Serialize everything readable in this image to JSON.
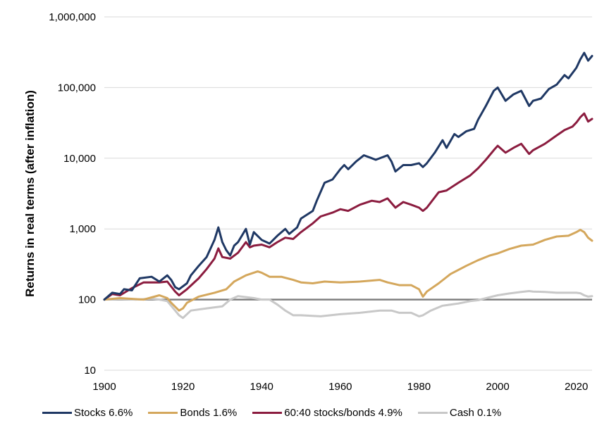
{
  "chart_data": {
    "type": "line",
    "ylabel": "Returns in real terms (after inflation)",
    "xlabel": "",
    "title": "",
    "y_scale": "log",
    "ylim": [
      10,
      1000000
    ],
    "xlim": [
      1900,
      2024
    ],
    "x_ticks": [
      1900,
      1920,
      1940,
      1960,
      1980,
      2000,
      2020
    ],
    "x_tick_labels": [
      "1900",
      "1920",
      "1940",
      "1960",
      "1980",
      "2000",
      "2020"
    ],
    "y_ticks": [
      10,
      100,
      1000,
      10000,
      100000,
      1000000
    ],
    "y_tick_labels": [
      "10",
      "100",
      "1,000",
      "10,000",
      "100,000",
      "1,000,000"
    ],
    "reference_line": {
      "y": 100,
      "color": "#7f7f7f"
    },
    "grid": "horizontal",
    "legend_position": "bottom",
    "series": [
      {
        "name": "Stocks 6.6%",
        "color": "#1f3864",
        "x": [
          1900,
          1902,
          1904,
          1905,
          1907,
          1909,
          1912,
          1914,
          1916,
          1917,
          1918,
          1919,
          1921,
          1922,
          1924,
          1926,
          1928,
          1929,
          1930,
          1931,
          1932,
          1933,
          1934,
          1936,
          1937,
          1938,
          1940,
          1942,
          1944,
          1946,
          1947,
          1949,
          1950,
          1953,
          1954,
          1956,
          1958,
          1960,
          1961,
          1962,
          1964,
          1966,
          1968,
          1969,
          1972,
          1973,
          1974,
          1976,
          1978,
          1980,
          1981,
          1982,
          1984,
          1986,
          1987,
          1989,
          1990,
          1992,
          1994,
          1995,
          1997,
          1999,
          2000,
          2002,
          2004,
          2006,
          2008,
          2009,
          2011,
          2013,
          2015,
          2017,
          2018,
          2020,
          2021,
          2022,
          2023,
          2024
        ],
        "values": [
          100,
          125,
          120,
          140,
          135,
          200,
          210,
          180,
          220,
          190,
          150,
          140,
          170,
          220,
          300,
          400,
          700,
          1050,
          650,
          500,
          420,
          580,
          650,
          1000,
          600,
          900,
          700,
          620,
          800,
          1000,
          850,
          1050,
          1400,
          1800,
          2500,
          4500,
          5000,
          7000,
          8000,
          7000,
          9000,
          11000,
          10000,
          9500,
          11000,
          9000,
          6500,
          8000,
          8000,
          8500,
          7500,
          8500,
          12000,
          18000,
          14000,
          22000,
          20000,
          24000,
          26000,
          35000,
          55000,
          90000,
          100000,
          65000,
          80000,
          90000,
          55000,
          65000,
          70000,
          95000,
          110000,
          150000,
          135000,
          190000,
          250000,
          310000,
          240000,
          280000
        ]
      },
      {
        "name": "Bonds 1.6%",
        "color": "#d4a75c",
        "x": [
          1900,
          1904,
          1910,
          1914,
          1916,
          1917,
          1919,
          1920,
          1921,
          1924,
          1928,
          1931,
          1933,
          1936,
          1939,
          1940,
          1942,
          1945,
          1948,
          1950,
          1953,
          1956,
          1960,
          1965,
          1970,
          1972,
          1975,
          1978,
          1980,
          1981,
          1982,
          1985,
          1988,
          1992,
          1995,
          1998,
          2000,
          2003,
          2006,
          2009,
          2012,
          2015,
          2018,
          2020,
          2021,
          2022,
          2023,
          2024
        ],
        "values": [
          100,
          105,
          100,
          115,
          105,
          90,
          70,
          75,
          90,
          110,
          125,
          140,
          180,
          220,
          250,
          240,
          210,
          210,
          190,
          175,
          170,
          180,
          175,
          180,
          190,
          175,
          160,
          160,
          140,
          110,
          130,
          170,
          230,
          300,
          360,
          420,
          450,
          520,
          580,
          600,
          700,
          780,
          800,
          900,
          970,
          900,
          750,
          680
        ]
      },
      {
        "name": "60:40 stocks/bonds 4.9%",
        "color": "#8b1c3f",
        "x": [
          1900,
          1902,
          1904,
          1907,
          1910,
          1914,
          1916,
          1918,
          1919,
          1921,
          1924,
          1926,
          1928,
          1929,
          1930,
          1932,
          1934,
          1936,
          1937,
          1938,
          1940,
          1942,
          1944,
          1946,
          1948,
          1950,
          1953,
          1955,
          1958,
          1960,
          1962,
          1965,
          1968,
          1970,
          1972,
          1974,
          1976,
          1978,
          1980,
          1981,
          1982,
          1985,
          1987,
          1990,
          1993,
          1995,
          1997,
          1999,
          2000,
          2002,
          2004,
          2006,
          2008,
          2009,
          2012,
          2015,
          2017,
          2019,
          2020,
          2021,
          2022,
          2023,
          2024
        ],
        "values": [
          100,
          120,
          115,
          145,
          175,
          175,
          180,
          130,
          115,
          140,
          200,
          270,
          380,
          530,
          400,
          380,
          460,
          650,
          550,
          580,
          600,
          550,
          650,
          750,
          720,
          900,
          1200,
          1500,
          1700,
          1900,
          1800,
          2200,
          2500,
          2400,
          2700,
          2000,
          2400,
          2200,
          2000,
          1800,
          2000,
          3300,
          3500,
          4500,
          5700,
          7200,
          9500,
          13000,
          15000,
          12000,
          14000,
          16000,
          11500,
          13000,
          16000,
          21000,
          25000,
          28000,
          32000,
          38000,
          43000,
          33000,
          36000
        ]
      },
      {
        "name": "Cash 0.1%",
        "color": "#c8c8c8",
        "x": [
          1900,
          1904,
          1908,
          1912,
          1914,
          1916,
          1918,
          1919,
          1920,
          1922,
          1926,
          1930,
          1932,
          1934,
          1938,
          1940,
          1942,
          1944,
          1946,
          1948,
          1950,
          1955,
          1960,
          1965,
          1970,
          1973,
          1975,
          1978,
          1980,
          1981,
          1983,
          1986,
          1990,
          1993,
          1995,
          1998,
          2000,
          2003,
          2006,
          2008,
          2009,
          2012,
          2015,
          2018,
          2020,
          2021,
          2022,
          2023,
          2024
        ],
        "values": [
          100,
          102,
          100,
          103,
          100,
          95,
          70,
          60,
          55,
          70,
          75,
          80,
          100,
          112,
          105,
          100,
          100,
          85,
          70,
          60,
          60,
          58,
          62,
          65,
          70,
          70,
          65,
          65,
          58,
          60,
          70,
          82,
          88,
          95,
          98,
          108,
          115,
          122,
          128,
          132,
          130,
          128,
          125,
          125,
          125,
          123,
          115,
          110,
          112
        ]
      }
    ]
  }
}
